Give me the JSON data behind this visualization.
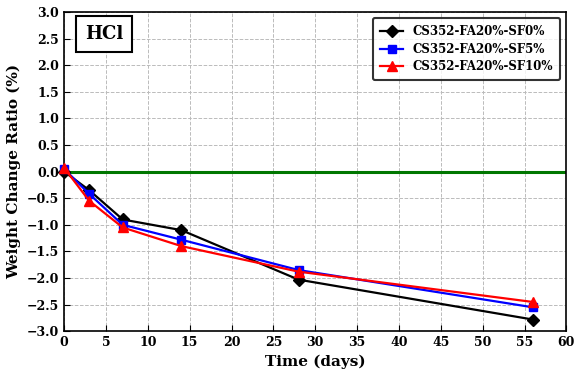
{
  "x_days": [
    0,
    3,
    7,
    14,
    28,
    56
  ],
  "series": [
    {
      "label": "CS352-FA20%-SF0%",
      "color": "#000000",
      "marker": "D",
      "markersize": 6,
      "values": [
        0.0,
        -0.35,
        -0.9,
        -1.1,
        -2.03,
        -2.78
      ]
    },
    {
      "label": "CS352-FA20%-SF5%",
      "color": "#0000FF",
      "marker": "s",
      "markersize": 6,
      "values": [
        0.05,
        -0.42,
        -1.0,
        -1.28,
        -1.85,
        -2.55
      ]
    },
    {
      "label": "CS352-FA20%-SF10%",
      "color": "#FF0000",
      "marker": "^",
      "markersize": 7,
      "values": [
        0.07,
        -0.55,
        -1.05,
        -1.4,
        -1.88,
        -2.45
      ]
    }
  ],
  "hline_y": 0.0,
  "hline_color": "#007700",
  "hline_lw": 2.2,
  "xlabel": "Time (days)",
  "ylabel": "Weight Change Ratio (%)",
  "xlim": [
    0,
    60
  ],
  "ylim": [
    -3.0,
    3.0
  ],
  "yticks": [
    -3.0,
    -2.5,
    -2.0,
    -1.5,
    -1.0,
    -0.5,
    0.0,
    0.5,
    1.0,
    1.5,
    2.0,
    2.5,
    3.0
  ],
  "xticks": [
    0,
    5,
    10,
    15,
    20,
    25,
    30,
    35,
    40,
    45,
    50,
    55,
    60
  ],
  "annotation_text": "HCl",
  "bg_color": "#FFFFFF",
  "grid_color": "#BBBBBB",
  "linewidth": 1.6,
  "label_fontsize": 11,
  "tick_fontsize": 9,
  "legend_fontsize": 8.5
}
